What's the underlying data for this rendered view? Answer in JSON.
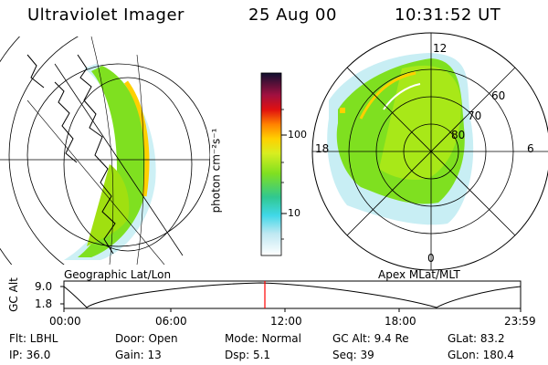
{
  "header": {
    "instrument": "Ultraviolet Imager",
    "date": "25 Aug 00",
    "time": "10:31:52 UT"
  },
  "panels": {
    "left_label": "Geographic Lat/Lon",
    "right_label": "Apex MLat/MLT",
    "polar_mlt_labels": [
      "12",
      "18",
      "6",
      "0"
    ],
    "polar_lat_labels": [
      "60",
      "70",
      "80"
    ]
  },
  "colorbar": {
    "label": "photon cm⁻²s⁻¹",
    "ticks": [
      "100",
      "10"
    ]
  },
  "altitude_plot": {
    "ylabel": "GC Alt",
    "yticks": [
      "9.0",
      "1.8"
    ],
    "xticks": [
      "00:00",
      "06:00",
      "12:00",
      "18:00",
      "23:59"
    ],
    "current_time_fraction": 0.44
  },
  "footer": {
    "filter": "Flt: LBHL",
    "ip": "IP: 36.0",
    "door": "Door: Open",
    "gain": "Gain: 13",
    "mode": "Mode: Normal",
    "dsp": "Dsp:    5.1",
    "gc_alt": "GC Alt: 9.4 Re",
    "seq": "Seq: 39",
    "glat": "GLat:  83.2",
    "glon": "GLon: 180.4"
  },
  "colors": {
    "accent_red": "#ff0000",
    "aurora_green": "#7fe020",
    "aurora_cyan": "#40d8e8"
  }
}
